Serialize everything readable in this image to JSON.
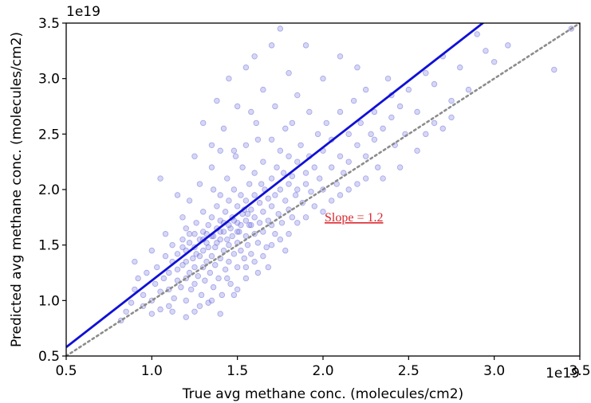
{
  "chart_data": {
    "type": "scatter",
    "title": "",
    "xlabel": "True avg methane conc. (molecules/cm2)",
    "ylabel": "Predicted avg methane conc. (molecules/cm2)",
    "x_offset_label": "1e19",
    "y_offset_label": "1e19",
    "xlim": [
      0.5,
      3.5
    ],
    "ylim": [
      0.5,
      3.5
    ],
    "x_ticks": [
      "0.5",
      "1.0",
      "1.5",
      "2.0",
      "2.5",
      "3.0",
      "3.5"
    ],
    "y_ticks": [
      "0.5",
      "1.0",
      "1.5",
      "2.0",
      "2.5",
      "3.0",
      "3.5"
    ],
    "grid": false,
    "legend": "none",
    "point_color": "#6b6bdc",
    "fit_color": "#1010d6",
    "identity_color": "#8c8c8c",
    "annotation": "Slope = 1.2",
    "annotation_color": "#d9262c",
    "fit_line": {
      "slope": 1.2,
      "intercept": -0.02
    },
    "identity_line": {
      "slope": 1.0,
      "intercept": 0.0
    },
    "points": [
      [
        0.82,
        0.82
      ],
      [
        0.85,
        0.9
      ],
      [
        0.88,
        0.98
      ],
      [
        0.9,
        1.1
      ],
      [
        0.92,
        1.2
      ],
      [
        0.95,
        0.95
      ],
      [
        0.95,
        1.05
      ],
      [
        0.97,
        1.25
      ],
      [
        1.0,
        0.88
      ],
      [
        1.0,
        1.0
      ],
      [
        1.02,
        1.15
      ],
      [
        1.03,
        1.3
      ],
      [
        1.05,
        0.92
      ],
      [
        1.05,
        1.08
      ],
      [
        1.07,
        1.2
      ],
      [
        1.08,
        1.4
      ],
      [
        1.1,
        0.95
      ],
      [
        1.1,
        1.1
      ],
      [
        1.1,
        1.25
      ],
      [
        1.12,
        1.35
      ],
      [
        1.12,
        1.5
      ],
      [
        1.13,
        1.02
      ],
      [
        1.15,
        1.18
      ],
      [
        1.15,
        1.28
      ],
      [
        1.15,
        1.42
      ],
      [
        1.17,
        1.12
      ],
      [
        1.18,
        1.32
      ],
      [
        1.18,
        1.55
      ],
      [
        1.2,
        1.0
      ],
      [
        1.2,
        1.2
      ],
      [
        1.2,
        1.35
      ],
      [
        1.2,
        1.45
      ],
      [
        1.22,
        1.25
      ],
      [
        1.22,
        1.6
      ],
      [
        1.23,
        1.1
      ],
      [
        1.24,
        1.38
      ],
      [
        1.25,
        0.9
      ],
      [
        1.25,
        1.15
      ],
      [
        1.25,
        1.3
      ],
      [
        1.25,
        1.48
      ],
      [
        1.26,
        1.7
      ],
      [
        1.27,
        1.22
      ],
      [
        1.28,
        1.4
      ],
      [
        1.28,
        1.55
      ],
      [
        1.29,
        1.05
      ],
      [
        1.3,
        1.3
      ],
      [
        1.3,
        1.45
      ],
      [
        1.3,
        1.62
      ],
      [
        1.3,
        1.8
      ],
      [
        1.31,
        1.18
      ],
      [
        1.32,
        1.35
      ],
      [
        1.32,
        1.52
      ],
      [
        1.33,
        0.98
      ],
      [
        1.33,
        1.68
      ],
      [
        1.34,
        1.25
      ],
      [
        1.35,
        1.4
      ],
      [
        1.35,
        1.58
      ],
      [
        1.35,
        1.75
      ],
      [
        1.36,
        1.12
      ],
      [
        1.36,
        2.0
      ],
      [
        1.37,
        1.32
      ],
      [
        1.37,
        1.48
      ],
      [
        1.38,
        1.65
      ],
      [
        1.38,
        1.85
      ],
      [
        1.39,
        1.2
      ],
      [
        1.4,
        1.38
      ],
      [
        1.4,
        1.55
      ],
      [
        1.4,
        1.72
      ],
      [
        1.4,
        1.95
      ],
      [
        1.41,
        1.05
      ],
      [
        1.42,
        1.45
      ],
      [
        1.42,
        1.62
      ],
      [
        1.43,
        1.28
      ],
      [
        1.43,
        1.8
      ],
      [
        1.44,
        2.1
      ],
      [
        1.45,
        1.35
      ],
      [
        1.45,
        1.5
      ],
      [
        1.45,
        1.68
      ],
      [
        1.45,
        1.9
      ],
      [
        1.46,
        1.15
      ],
      [
        1.47,
        1.58
      ],
      [
        1.47,
        1.75
      ],
      [
        1.48,
        1.42
      ],
      [
        1.48,
        2.0
      ],
      [
        1.49,
        2.3
      ],
      [
        1.5,
        1.3
      ],
      [
        1.5,
        1.52
      ],
      [
        1.5,
        1.7
      ],
      [
        1.5,
        1.85
      ],
      [
        1.51,
        1.62
      ],
      [
        1.52,
        1.45
      ],
      [
        1.52,
        1.95
      ],
      [
        1.53,
        1.78
      ],
      [
        1.53,
        2.2
      ],
      [
        1.54,
        1.38
      ],
      [
        1.55,
        1.58
      ],
      [
        1.55,
        1.72
      ],
      [
        1.55,
        1.9
      ],
      [
        1.55,
        2.4
      ],
      [
        1.56,
        1.5
      ],
      [
        1.57,
        1.68
      ],
      [
        1.57,
        2.05
      ],
      [
        1.58,
        1.82
      ],
      [
        1.58,
        1.42
      ],
      [
        1.6,
        1.6
      ],
      [
        1.6,
        1.75
      ],
      [
        1.6,
        1.95
      ],
      [
        1.6,
        2.15
      ],
      [
        1.61,
        2.6
      ],
      [
        1.62,
        1.52
      ],
      [
        1.63,
        1.7
      ],
      [
        1.63,
        1.88
      ],
      [
        1.64,
        2.05
      ],
      [
        1.65,
        1.62
      ],
      [
        1.65,
        1.8
      ],
      [
        1.65,
        2.25
      ],
      [
        1.66,
        2.0
      ],
      [
        1.67,
        1.48
      ],
      [
        1.68,
        1.72
      ],
      [
        1.68,
        1.92
      ],
      [
        1.7,
        1.68
      ],
      [
        1.7,
        1.85
      ],
      [
        1.7,
        2.1
      ],
      [
        1.7,
        2.45
      ],
      [
        1.72,
        1.95
      ],
      [
        1.72,
        1.6
      ],
      [
        1.73,
        2.2
      ],
      [
        1.74,
        1.78
      ],
      [
        1.75,
        2.0
      ],
      [
        1.75,
        2.35
      ],
      [
        1.76,
        1.7
      ],
      [
        1.77,
        2.15
      ],
      [
        1.78,
        1.9
      ],
      [
        1.78,
        2.55
      ],
      [
        1.8,
        1.82
      ],
      [
        1.8,
        2.05
      ],
      [
        1.8,
        2.3
      ],
      [
        1.82,
        1.75
      ],
      [
        1.82,
        2.12
      ],
      [
        1.84,
        1.95
      ],
      [
        1.85,
        2.25
      ],
      [
        1.85,
        2.0
      ],
      [
        1.87,
        2.4
      ],
      [
        1.88,
        1.88
      ],
      [
        1.9,
        2.15
      ],
      [
        1.9,
        2.05
      ],
      [
        1.92,
        2.3
      ],
      [
        1.93,
        1.98
      ],
      [
        1.95,
        2.2
      ],
      [
        1.97,
        2.5
      ],
      [
        1.98,
        2.1
      ],
      [
        2.0,
        2.35
      ],
      [
        2.0,
        2.0
      ],
      [
        2.02,
        2.6
      ],
      [
        2.05,
        2.2
      ],
      [
        2.05,
        2.45
      ],
      [
        2.08,
        2.05
      ],
      [
        2.1,
        2.3
      ],
      [
        2.1,
        2.7
      ],
      [
        2.12,
        2.15
      ],
      [
        2.15,
        2.5
      ],
      [
        2.15,
        2.25
      ],
      [
        2.18,
        2.8
      ],
      [
        2.2,
        2.4
      ],
      [
        2.2,
        2.05
      ],
      [
        2.22,
        2.6
      ],
      [
        2.25,
        2.3
      ],
      [
        2.25,
        2.9
      ],
      [
        2.28,
        2.5
      ],
      [
        2.3,
        2.7
      ],
      [
        2.32,
        2.2
      ],
      [
        2.35,
        2.55
      ],
      [
        2.38,
        3.0
      ],
      [
        2.4,
        2.65
      ],
      [
        2.42,
        2.4
      ],
      [
        2.45,
        2.75
      ],
      [
        2.48,
        2.5
      ],
      [
        2.5,
        2.9
      ],
      [
        2.55,
        2.7
      ],
      [
        2.6,
        3.05
      ],
      [
        2.65,
        2.6
      ],
      [
        2.7,
        3.2
      ],
      [
        2.75,
        2.8
      ],
      [
        2.8,
        3.1
      ],
      [
        2.85,
        2.9
      ],
      [
        2.95,
        3.25
      ],
      [
        3.0,
        3.15
      ],
      [
        3.08,
        3.3
      ],
      [
        3.35,
        3.08
      ],
      [
        3.45,
        3.45
      ],
      [
        1.05,
        2.1
      ],
      [
        1.15,
        1.95
      ],
      [
        1.25,
        2.3
      ],
      [
        1.3,
        2.6
      ],
      [
        1.38,
        2.8
      ],
      [
        1.45,
        3.0
      ],
      [
        1.5,
        2.75
      ],
      [
        1.55,
        3.1
      ],
      [
        1.6,
        3.2
      ],
      [
        1.65,
        2.9
      ],
      [
        1.7,
        3.3
      ],
      [
        1.75,
        3.45
      ],
      [
        1.8,
        3.05
      ],
      [
        1.85,
        2.85
      ],
      [
        1.9,
        3.3
      ],
      [
        2.0,
        3.0
      ],
      [
        2.1,
        3.2
      ],
      [
        2.2,
        3.1
      ],
      [
        1.35,
        2.4
      ],
      [
        1.42,
        2.55
      ],
      [
        1.48,
        2.35
      ],
      [
        1.58,
        2.7
      ],
      [
        1.62,
        2.45
      ],
      [
        1.72,
        2.75
      ],
      [
        1.82,
        2.6
      ],
      [
        1.92,
        2.7
      ],
      [
        0.9,
        1.35
      ],
      [
        1.0,
        1.45
      ],
      [
        1.08,
        1.6
      ],
      [
        1.18,
        1.75
      ],
      [
        1.22,
        1.9
      ],
      [
        1.28,
        2.05
      ],
      [
        1.35,
        2.2
      ],
      [
        1.4,
        2.35
      ],
      [
        1.44,
        1.2
      ],
      [
        1.5,
        1.1
      ],
      [
        1.55,
        1.2
      ],
      [
        1.6,
        1.35
      ],
      [
        1.65,
        1.4
      ],
      [
        1.7,
        1.5
      ],
      [
        1.75,
        1.55
      ],
      [
        1.8,
        1.6
      ],
      [
        1.85,
        1.7
      ],
      [
        1.9,
        1.75
      ],
      [
        1.95,
        1.85
      ],
      [
        2.0,
        1.8
      ],
      [
        2.05,
        1.9
      ],
      [
        2.1,
        1.95
      ],
      [
        2.15,
        2.0
      ],
      [
        2.25,
        2.1
      ],
      [
        1.12,
        0.9
      ],
      [
        1.2,
        0.85
      ],
      [
        1.28,
        0.95
      ],
      [
        1.35,
        1.0
      ],
      [
        1.4,
        0.88
      ],
      [
        1.48,
        1.05
      ],
      [
        1.55,
        1.3
      ],
      [
        1.62,
        1.25
      ],
      [
        1.68,
        1.3
      ],
      [
        1.78,
        1.45
      ],
      [
        1.2,
        1.65
      ],
      [
        1.3,
        1.55
      ],
      [
        1.25,
        1.6
      ],
      [
        1.33,
        1.48
      ],
      [
        1.38,
        1.52
      ],
      [
        1.42,
        1.7
      ],
      [
        1.46,
        1.65
      ],
      [
        1.5,
        1.62
      ],
      [
        1.54,
        1.82
      ],
      [
        1.58,
        1.68
      ],
      [
        1.18,
        1.48
      ],
      [
        1.22,
        1.52
      ],
      [
        1.26,
        1.42
      ],
      [
        1.32,
        1.6
      ],
      [
        1.36,
        1.58
      ],
      [
        1.4,
        1.62
      ],
      [
        1.44,
        1.55
      ],
      [
        1.48,
        1.72
      ],
      [
        1.52,
        1.68
      ],
      [
        1.56,
        1.78
      ],
      [
        2.45,
        2.2
      ],
      [
        2.6,
        2.5
      ],
      [
        2.75,
        2.65
      ],
      [
        2.9,
        3.4
      ],
      [
        2.55,
        2.35
      ],
      [
        2.35,
        2.1
      ],
      [
        2.4,
        2.85
      ],
      [
        2.3,
        2.45
      ],
      [
        2.65,
        2.95
      ],
      [
        2.7,
        2.55
      ]
    ]
  }
}
